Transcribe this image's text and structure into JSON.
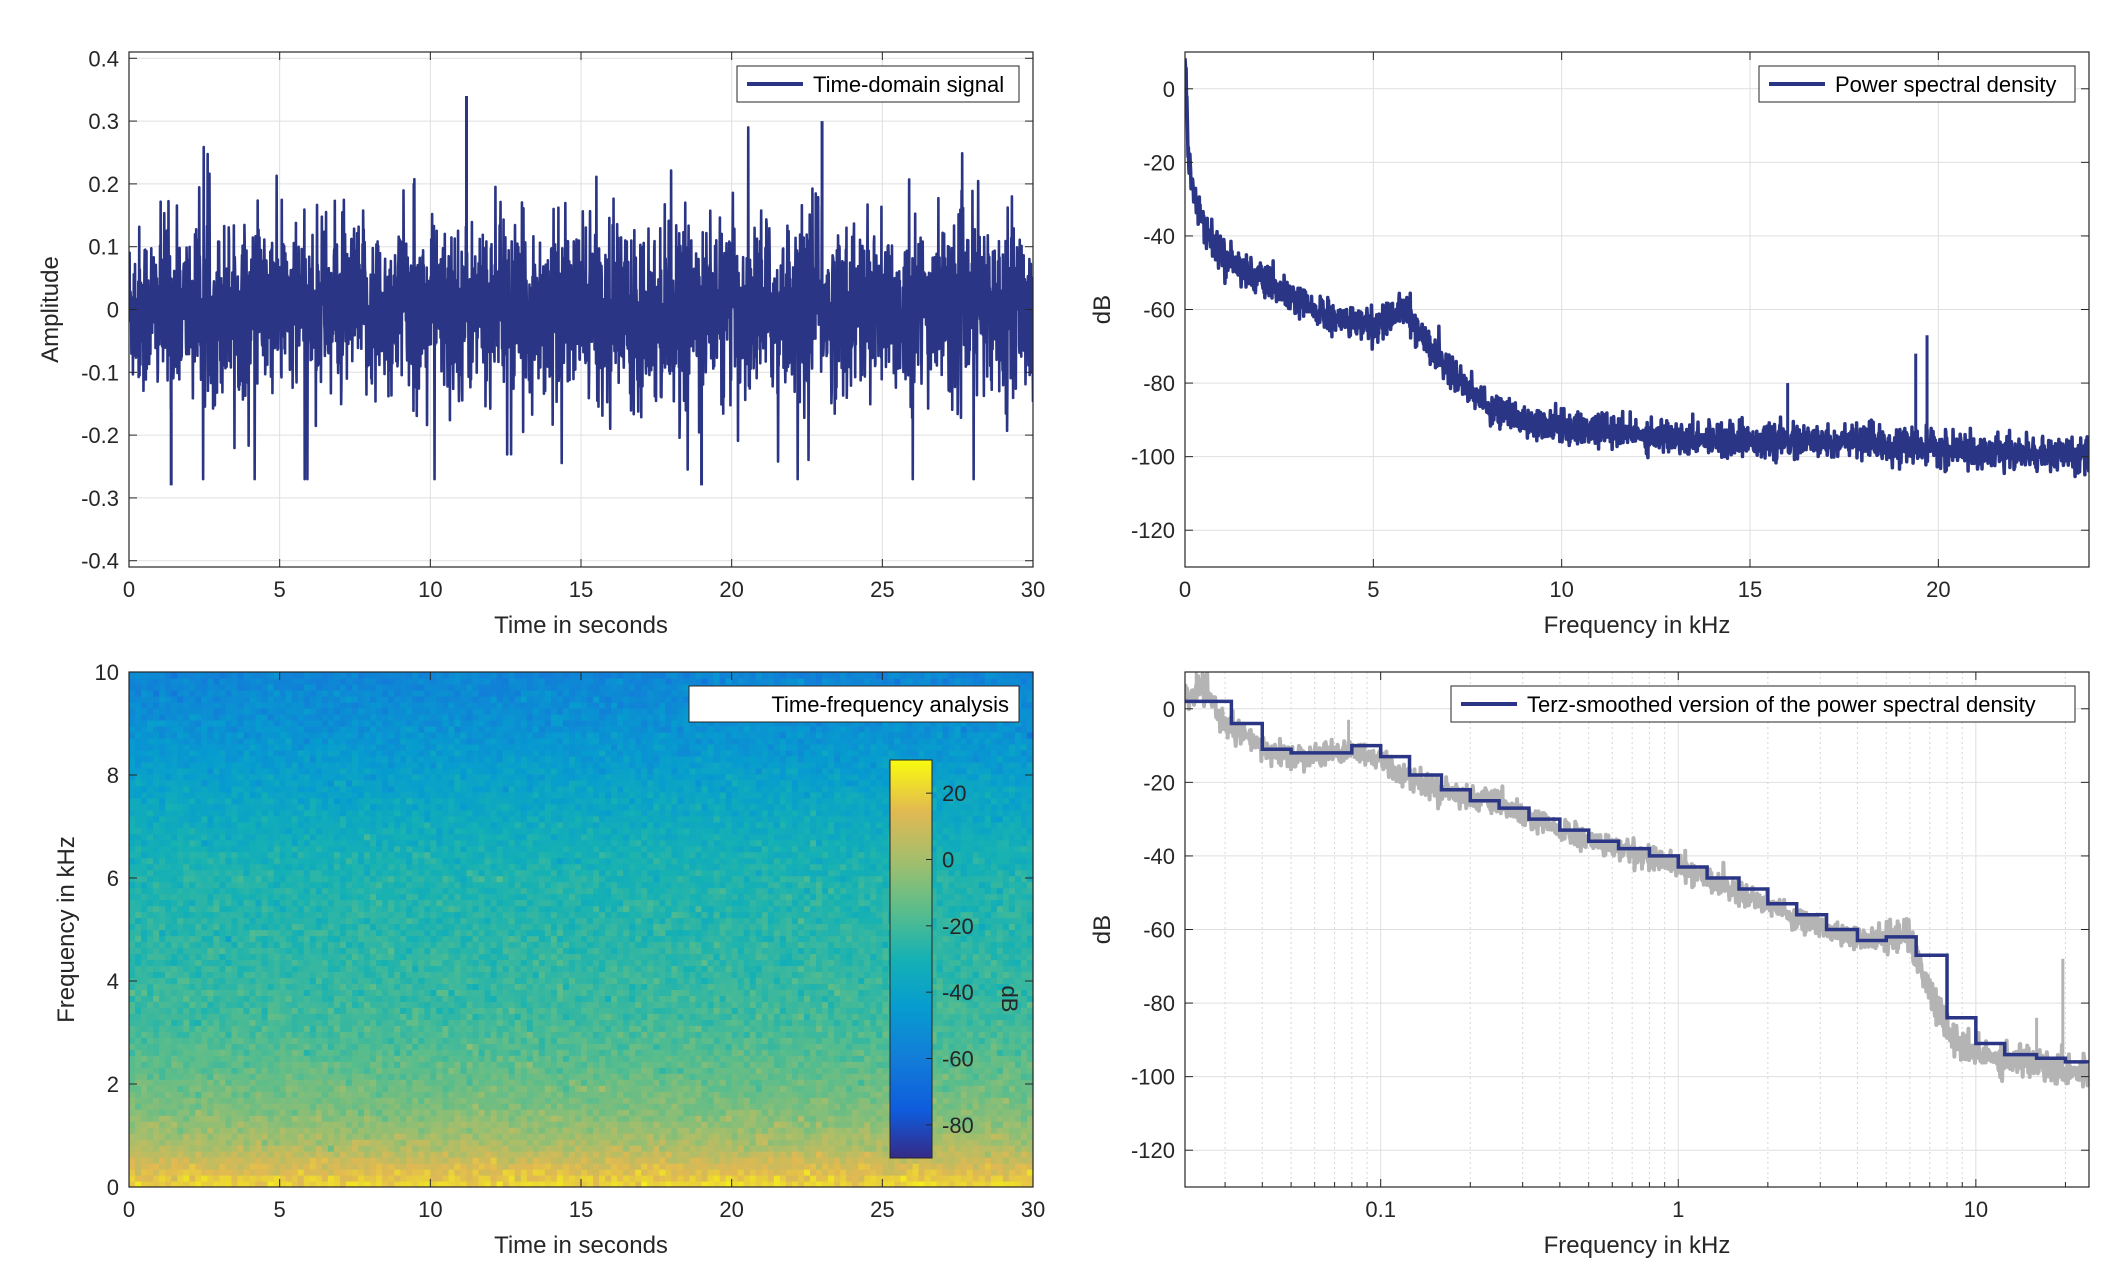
{
  "chart_data": [
    {
      "type": "line",
      "panel": "top-left",
      "xlabel": "Time in seconds",
      "ylabel": "Amplitude",
      "xlim": [
        0,
        30
      ],
      "ylim": [
        -0.41,
        0.41
      ],
      "xticks": [
        0,
        5,
        10,
        15,
        20,
        25,
        30
      ],
      "xtick_labels": [
        "0",
        "5",
        "10",
        "15",
        "20",
        "25",
        "30"
      ],
      "yticks": [
        -0.4,
        -0.3,
        -0.2,
        -0.1,
        0,
        0.1,
        0.2,
        0.3,
        0.4
      ],
      "ytick_labels": [
        "-0.4",
        "-0.3",
        "-0.2",
        "-0.1",
        "0",
        "0.1",
        "0.2",
        "0.3",
        "0.4"
      ],
      "grid": true,
      "legend_position": "top-right",
      "series": [
        {
          "name": "Time-domain signal",
          "color": "#2b3585",
          "description_values": "noise-like signal, typical band +/-0.12, peaks up to 0.34 and down to -0.28",
          "peaks": [
            {
              "x": 11.2,
              "y": 0.34
            },
            {
              "x": 23.0,
              "y": 0.3
            },
            {
              "x": 1.4,
              "y": -0.28
            },
            {
              "x": 19.0,
              "y": -0.28
            }
          ]
        }
      ]
    },
    {
      "type": "line",
      "panel": "top-right",
      "xlabel": "Frequency in kHz",
      "ylabel": "dB",
      "xlim": [
        0,
        24
      ],
      "ylim": [
        -130,
        10
      ],
      "xticks": [
        0,
        5,
        10,
        15,
        20
      ],
      "xtick_labels": [
        "0",
        "5",
        "10",
        "15",
        "20"
      ],
      "yticks": [
        -120,
        -100,
        -80,
        -60,
        -40,
        -20,
        0
      ],
      "ytick_labels": [
        "-120",
        "-100",
        "-80",
        "-60",
        "-40",
        "-20",
        "0"
      ],
      "grid": true,
      "legend_position": "top-right",
      "series": [
        {
          "name": "Power spectral density",
          "color": "#2b3585",
          "x": [
            0,
            0.1,
            0.3,
            0.5,
            1,
            2,
            3,
            4,
            5,
            5.8,
            6.5,
            7,
            8,
            9,
            10,
            12,
            14,
            16,
            18,
            19,
            20,
            22,
            24
          ],
          "y": [
            10,
            -20,
            -30,
            -38,
            -45,
            -52,
            -58,
            -63,
            -64,
            -60,
            -70,
            -76,
            -86,
            -90,
            -92,
            -94,
            -95,
            -96,
            -96,
            -97,
            -98,
            -99,
            -100
          ],
          "spikes": [
            {
              "x": 16.0,
              "y": -80
            },
            {
              "x": 19.4,
              "y": -72
            },
            {
              "x": 19.7,
              "y": -67
            }
          ]
        }
      ]
    },
    {
      "type": "heatmap",
      "panel": "bottom-left",
      "xlabel": "Time in seconds",
      "ylabel": "Frequency in kHz",
      "xlim": [
        0,
        30
      ],
      "ylim": [
        0,
        10
      ],
      "xticks": [
        0,
        5,
        10,
        15,
        20,
        25,
        30
      ],
      "xtick_labels": [
        "0",
        "5",
        "10",
        "15",
        "20",
        "25",
        "30"
      ],
      "yticks": [
        0,
        2,
        4,
        6,
        8,
        10
      ],
      "ytick_labels": [
        "0",
        "2",
        "4",
        "6",
        "8",
        "10"
      ],
      "title_box": "Time-frequency analysis",
      "legend_position": "top-right",
      "colorbar": {
        "label": "dB",
        "range": [
          -90,
          30
        ],
        "ticks": [
          20,
          0,
          -20,
          -40,
          -60,
          -80
        ],
        "tick_labels": [
          "20",
          "0",
          "-20",
          "-40",
          "-60",
          "-80"
        ]
      },
      "freq_profile_khz": [
        0,
        0.3,
        0.8,
        1.5,
        2.5,
        3.5,
        5,
        6,
        7,
        8,
        9,
        10
      ],
      "freq_profile_db": [
        22,
        15,
        2,
        -8,
        -16,
        -22,
        -26,
        -28,
        -34,
        -42,
        -50,
        -56
      ]
    },
    {
      "type": "line",
      "panel": "bottom-right",
      "xlabel": "Frequency in kHz",
      "ylabel": "dB",
      "xscale": "log",
      "xlim": [
        0.022,
        24
      ],
      "ylim": [
        -130,
        10
      ],
      "xticks": [
        0.1,
        1,
        10
      ],
      "xtick_labels": [
        "0.1",
        "1",
        "10"
      ],
      "yticks": [
        -120,
        -100,
        -80,
        -60,
        -40,
        -20,
        0
      ],
      "ytick_labels": [
        "-120",
        "-100",
        "-80",
        "-60",
        "-40",
        "-20",
        "0"
      ],
      "grid": true,
      "legend_position": "top-right",
      "series": [
        {
          "name": "Terz-smoothed version of the power spectral density",
          "color": "#2b3585",
          "style": "step",
          "x": [
            0.022,
            0.025,
            0.0315,
            0.04,
            0.05,
            0.063,
            0.08,
            0.1,
            0.125,
            0.16,
            0.2,
            0.25,
            0.315,
            0.4,
            0.5,
            0.63,
            0.8,
            1.0,
            1.25,
            1.6,
            2.0,
            2.5,
            3.15,
            4.0,
            5.0,
            6.3,
            8.0,
            10.0,
            12.5,
            16.0,
            20.0,
            24.0
          ],
          "y": [
            2,
            2,
            -4,
            -11,
            -12,
            -12,
            -10,
            -13,
            -18,
            -22,
            -25,
            -27,
            -30,
            -33,
            -36,
            -38,
            -40,
            -43,
            -46,
            -49,
            -53,
            -56,
            -60,
            -63,
            -62,
            -67,
            -84,
            -91,
            -94,
            -95,
            -96,
            -96
          ]
        },
        {
          "color": "#b4b4b4",
          "style": "raw",
          "x": [
            0.022,
            0.025,
            0.03,
            0.04,
            0.05,
            0.063,
            0.08,
            0.1,
            0.125,
            0.16,
            0.2,
            0.25,
            0.315,
            0.4,
            0.5,
            0.63,
            0.8,
            1.0,
            1.25,
            1.6,
            2.0,
            2.5,
            3.15,
            4.0,
            5.0,
            5.8,
            6.5,
            7.0,
            8.0,
            9.0,
            10.0,
            12.0,
            16.0,
            20.0,
            24.0
          ],
          "y": [
            2,
            6,
            -4,
            -11,
            -13,
            -12,
            -11,
            -14,
            -19,
            -22,
            -24,
            -26,
            -30,
            -33,
            -36,
            -38,
            -40,
            -43,
            -46,
            -50,
            -53,
            -57,
            -60,
            -62,
            -63,
            -60,
            -70,
            -77,
            -88,
            -92,
            -94,
            -95,
            -96,
            -98,
            -99
          ],
          "spikes": [
            {
              "x": 0.024,
              "y": 10
            },
            {
              "x": 0.078,
              "y": -3
            },
            {
              "x": 0.1,
              "y": -10
            },
            {
              "x": 16.0,
              "y": -84
            },
            {
              "x": 19.6,
              "y": -68
            }
          ]
        }
      ]
    }
  ]
}
